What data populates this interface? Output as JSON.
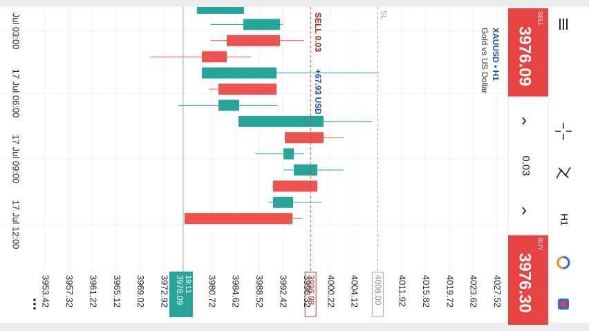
{
  "header": {
    "symbol": "XAUUSD • H1",
    "description": "Gold vs US Dollar"
  },
  "trade_panel": {
    "sell_label": "SELL",
    "sell_price": "3976.09",
    "volume": "0.03",
    "buy_label": "BUY",
    "buy_price": "3976.30"
  },
  "toolbar": {
    "timeframe": "H1"
  },
  "chart": {
    "type": "candlestick",
    "ylim": [
      3949.45,
      4028.82
    ],
    "yticks": [
      3953.42,
      3957.32,
      3961.22,
      3965.12,
      3969.02,
      3972.92,
      3980.72,
      3984.62,
      3988.52,
      3992.42,
      3996.32,
      4000.22,
      4004.12,
      4011.92,
      4015.82,
      4019.72,
      4023.62,
      4027.52
    ],
    "time_labels": [
      "Jul 03:00",
      "17 Jul 06:00",
      "17 Jul 09:00",
      "17 Jul 12:00"
    ],
    "candles": [
      {
        "open": 3978.36,
        "high": 3986.07,
        "low": 3978.36,
        "close": 3986.07
      },
      {
        "open": 3985.96,
        "high": 3992.54,
        "low": 3980.63,
        "close": 3991.97
      },
      {
        "open": 3991.97,
        "high": 3995.94,
        "low": 3980.63,
        "close": 3983.24
      },
      {
        "open": 3983.24,
        "high": 3987.21,
        "low": 3970.77,
        "close": 3979.16
      },
      {
        "open": 3979.16,
        "high": 4008.18,
        "low": 3979.16,
        "close": 3991.4
      },
      {
        "open": 3991.4,
        "high": 3991.4,
        "low": 3980.29,
        "close": 3981.88
      },
      {
        "open": 3981.88,
        "high": 3991.63,
        "low": 3975.3,
        "close": 3985.28
      },
      {
        "open": 3985.17,
        "high": 4007.05,
        "low": 3985.17,
        "close": 3999.11
      },
      {
        "open": 3999.11,
        "high": 4002.4,
        "low": 3992.76,
        "close": 3992.76
      },
      {
        "open": 3992.54,
        "high": 3995.94,
        "low": 3988.0,
        "close": 3994.24
      },
      {
        "open": 3994.24,
        "high": 4002.4,
        "low": 3992.54,
        "close": 3998.09
      },
      {
        "open": 3998.09,
        "high": 3998.09,
        "low": 3990.61,
        "close": 3990.83
      },
      {
        "open": 3990.83,
        "high": 3998.77,
        "low": 3990.04,
        "close": 3994.12
      },
      {
        "open": 3994.01,
        "high": 3995.6,
        "low": 3976.32,
        "close": 3976.32
      }
    ],
    "current_price": {
      "value": 3976.09,
      "label": "3976.09",
      "countdown": "19:11"
    },
    "order": {
      "label": "SELL 0.03",
      "profit": "+67.93 USD",
      "price": {
        "value": 3996.98,
        "label": "3996.98"
      }
    },
    "stop_loss": {
      "label": "SL",
      "price": {
        "value": 4008.0,
        "label": "4008.00"
      }
    }
  }
}
